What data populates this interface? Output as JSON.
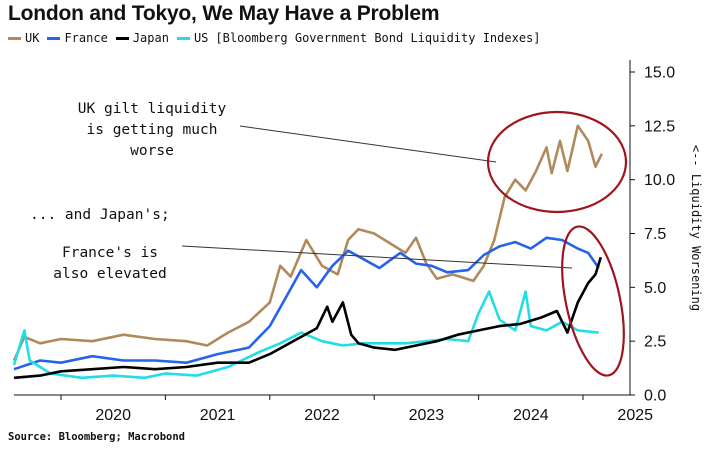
{
  "header": {
    "title": "London and Tokyo, We May Have a Problem",
    "legend_suffix": "[Bloomberg Government Bond Liquidity Indexes]"
  },
  "footer": {
    "source": "Source: Bloomberg; Macrobond"
  },
  "annotations": {
    "uk": [
      "UK gilt liquidity",
      "is getting much",
      "worse"
    ],
    "japan": [
      "... and Japan's;"
    ],
    "france": [
      "France's is",
      "also elevated"
    ]
  },
  "chart_data": {
    "type": "line",
    "title": "London and Tokyo, We May Have a Problem",
    "ylabel": "<-- Liquidity Worsening",
    "xlabel": "",
    "y_axis_position": "right",
    "ylim": [
      0,
      15
    ],
    "yticks": [
      "15.0",
      "12.5",
      "10.0",
      "7.5",
      "5.0",
      "2.5",
      "0.0"
    ],
    "xlim": [
      2019.55,
      2025.45
    ],
    "xticks": [
      "2020",
      "2021",
      "2022",
      "2023",
      "2024",
      "2025"
    ],
    "grid": false,
    "legend_position": "top-left",
    "series": [
      {
        "name": "UK",
        "color": "#b08a5a",
        "points": [
          [
            2019.55,
            1.6
          ],
          [
            2019.65,
            2.7
          ],
          [
            2019.8,
            2.4
          ],
          [
            2020.0,
            2.6
          ],
          [
            2020.3,
            2.5
          ],
          [
            2020.6,
            2.8
          ],
          [
            2020.9,
            2.6
          ],
          [
            2021.2,
            2.5
          ],
          [
            2021.4,
            2.3
          ],
          [
            2021.6,
            2.9
          ],
          [
            2021.8,
            3.4
          ],
          [
            2022.0,
            4.3
          ],
          [
            2022.1,
            6.0
          ],
          [
            2022.2,
            5.5
          ],
          [
            2022.35,
            7.2
          ],
          [
            2022.5,
            6.0
          ],
          [
            2022.65,
            5.6
          ],
          [
            2022.75,
            7.2
          ],
          [
            2022.85,
            7.7
          ],
          [
            2023.0,
            7.5
          ],
          [
            2023.1,
            7.2
          ],
          [
            2023.3,
            6.6
          ],
          [
            2023.4,
            7.3
          ],
          [
            2023.5,
            6.1
          ],
          [
            2023.6,
            5.4
          ],
          [
            2023.75,
            5.6
          ],
          [
            2023.95,
            5.3
          ],
          [
            2024.05,
            6.0
          ],
          [
            2024.15,
            7.2
          ],
          [
            2024.25,
            9.2
          ],
          [
            2024.35,
            10.0
          ],
          [
            2024.45,
            9.5
          ],
          [
            2024.55,
            10.4
          ],
          [
            2024.65,
            11.5
          ],
          [
            2024.7,
            10.3
          ],
          [
            2024.78,
            11.8
          ],
          [
            2024.85,
            10.4
          ],
          [
            2024.95,
            12.5
          ],
          [
            2025.05,
            11.8
          ],
          [
            2025.12,
            10.6
          ],
          [
            2025.18,
            11.2
          ]
        ]
      },
      {
        "name": "France",
        "color": "#2563eb",
        "points": [
          [
            2019.55,
            1.2
          ],
          [
            2019.8,
            1.6
          ],
          [
            2020.0,
            1.5
          ],
          [
            2020.3,
            1.8
          ],
          [
            2020.6,
            1.6
          ],
          [
            2020.9,
            1.6
          ],
          [
            2021.2,
            1.5
          ],
          [
            2021.5,
            1.9
          ],
          [
            2021.8,
            2.2
          ],
          [
            2022.0,
            3.2
          ],
          [
            2022.15,
            4.5
          ],
          [
            2022.3,
            5.8
          ],
          [
            2022.45,
            5.0
          ],
          [
            2022.6,
            6.0
          ],
          [
            2022.75,
            6.7
          ],
          [
            2022.9,
            6.3
          ],
          [
            2023.05,
            5.9
          ],
          [
            2023.25,
            6.6
          ],
          [
            2023.4,
            6.1
          ],
          [
            2023.55,
            6.0
          ],
          [
            2023.7,
            5.7
          ],
          [
            2023.9,
            5.8
          ],
          [
            2024.05,
            6.5
          ],
          [
            2024.2,
            6.9
          ],
          [
            2024.35,
            7.1
          ],
          [
            2024.5,
            6.8
          ],
          [
            2024.65,
            7.3
          ],
          [
            2024.8,
            7.2
          ],
          [
            2024.95,
            6.8
          ],
          [
            2025.05,
            6.6
          ],
          [
            2025.15,
            5.9
          ]
        ]
      },
      {
        "name": "Japan",
        "color": "#000000",
        "points": [
          [
            2019.55,
            0.8
          ],
          [
            2019.8,
            0.9
          ],
          [
            2020.0,
            1.1
          ],
          [
            2020.3,
            1.2
          ],
          [
            2020.6,
            1.3
          ],
          [
            2020.9,
            1.2
          ],
          [
            2021.2,
            1.3
          ],
          [
            2021.5,
            1.5
          ],
          [
            2021.8,
            1.5
          ],
          [
            2022.0,
            1.9
          ],
          [
            2022.15,
            2.3
          ],
          [
            2022.3,
            2.7
          ],
          [
            2022.45,
            3.1
          ],
          [
            2022.55,
            4.1
          ],
          [
            2022.6,
            3.4
          ],
          [
            2022.7,
            4.3
          ],
          [
            2022.78,
            2.8
          ],
          [
            2022.85,
            2.4
          ],
          [
            2023.0,
            2.2
          ],
          [
            2023.2,
            2.1
          ],
          [
            2023.4,
            2.3
          ],
          [
            2023.6,
            2.5
          ],
          [
            2023.8,
            2.8
          ],
          [
            2024.0,
            3.0
          ],
          [
            2024.2,
            3.2
          ],
          [
            2024.4,
            3.3
          ],
          [
            2024.6,
            3.6
          ],
          [
            2024.75,
            3.9
          ],
          [
            2024.85,
            2.9
          ],
          [
            2024.95,
            4.3
          ],
          [
            2025.05,
            5.2
          ],
          [
            2025.12,
            5.6
          ],
          [
            2025.17,
            6.4
          ]
        ]
      },
      {
        "name": "US",
        "color": "#22dde6",
        "points": [
          [
            2019.55,
            1.4
          ],
          [
            2019.65,
            3.0
          ],
          [
            2019.7,
            1.6
          ],
          [
            2019.9,
            1.0
          ],
          [
            2020.2,
            0.8
          ],
          [
            2020.5,
            0.9
          ],
          [
            2020.8,
            0.8
          ],
          [
            2021.0,
            1.0
          ],
          [
            2021.3,
            0.9
          ],
          [
            2021.6,
            1.3
          ],
          [
            2021.9,
            2.0
          ],
          [
            2022.1,
            2.4
          ],
          [
            2022.3,
            2.9
          ],
          [
            2022.5,
            2.5
          ],
          [
            2022.7,
            2.3
          ],
          [
            2022.9,
            2.4
          ],
          [
            2023.1,
            2.4
          ],
          [
            2023.3,
            2.4
          ],
          [
            2023.5,
            2.5
          ],
          [
            2023.7,
            2.6
          ],
          [
            2023.9,
            2.5
          ],
          [
            2024.0,
            3.8
          ],
          [
            2024.1,
            4.8
          ],
          [
            2024.2,
            3.5
          ],
          [
            2024.35,
            3.0
          ],
          [
            2024.45,
            4.8
          ],
          [
            2024.5,
            3.2
          ],
          [
            2024.65,
            3.0
          ],
          [
            2024.8,
            3.4
          ],
          [
            2024.95,
            3.0
          ],
          [
            2025.15,
            2.9
          ]
        ]
      }
    ]
  }
}
